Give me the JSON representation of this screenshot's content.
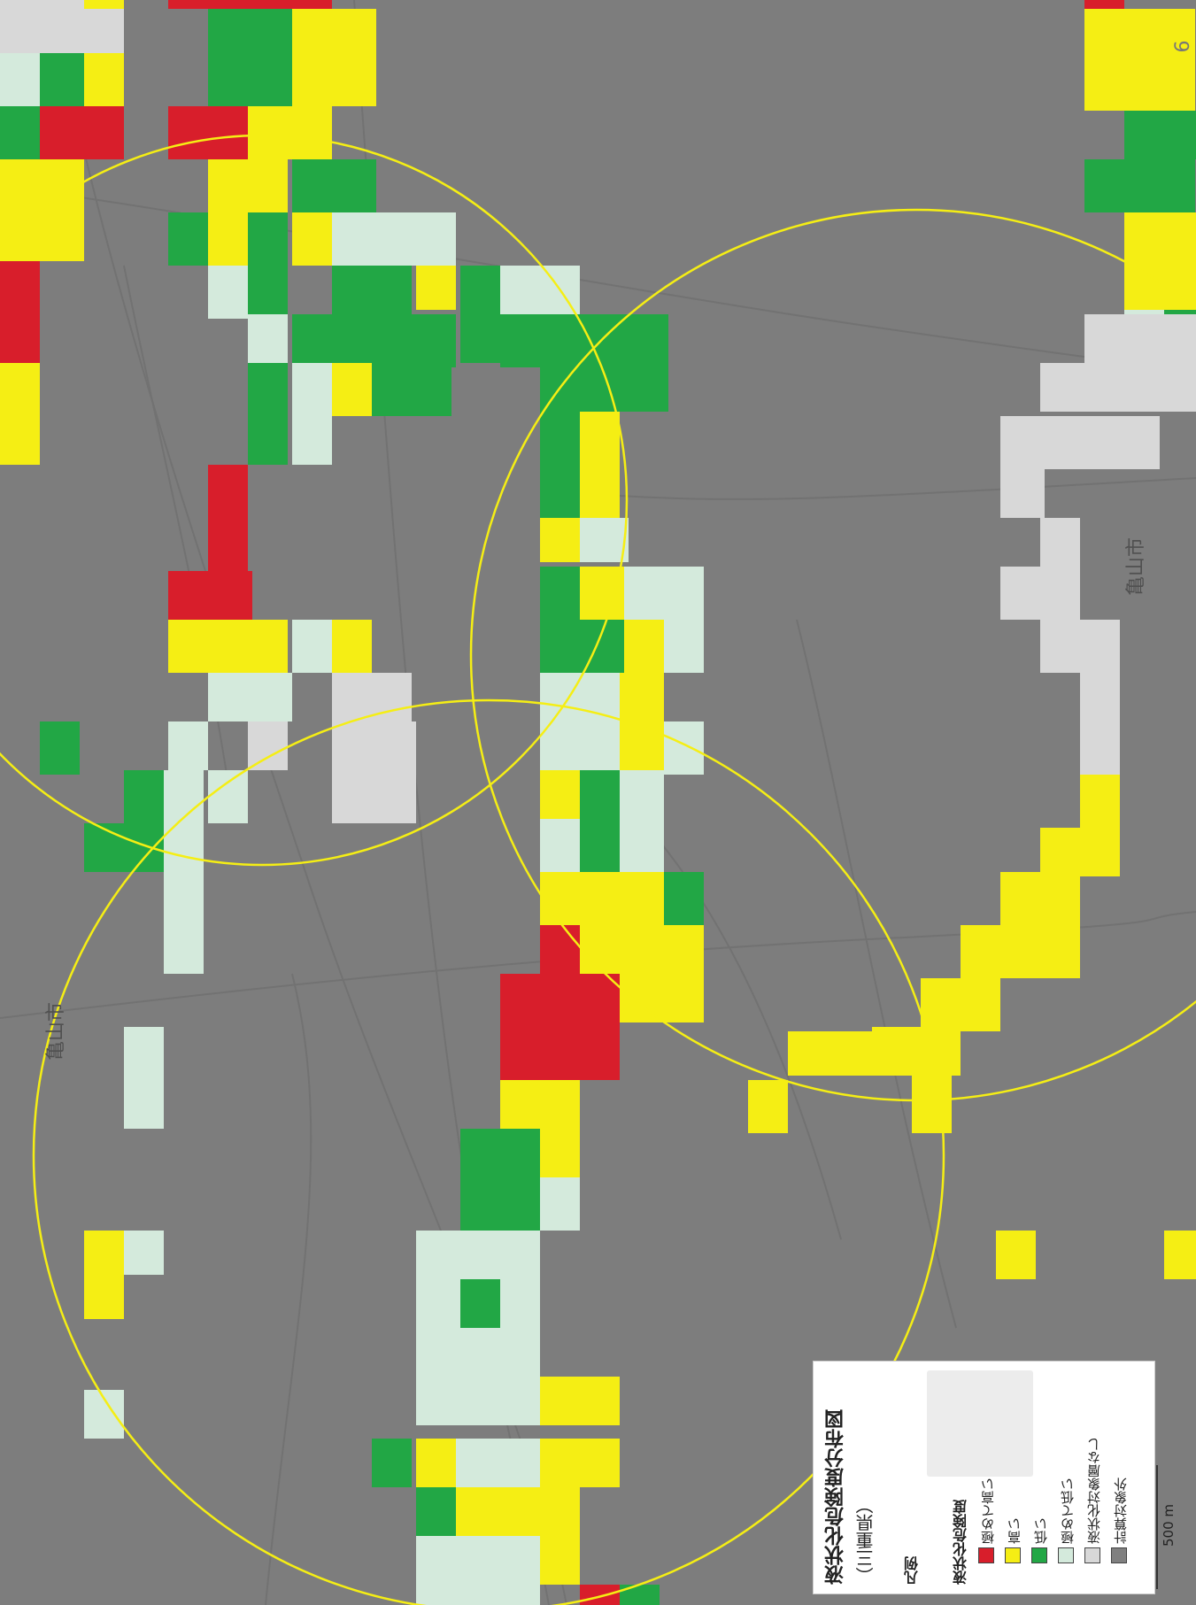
{
  "page_number": "9",
  "map_labels": {
    "city_east": "亀山市",
    "city_west": "亀山市"
  },
  "legend": {
    "title": "液状化危険度分布図",
    "region": "（三重県）",
    "key_label": "凡例",
    "caption": "液状化危険度",
    "items": [
      {
        "label": "極めて高い",
        "color": "#d81e2b"
      },
      {
        "label": "高い",
        "color": "#f5ee14"
      },
      {
        "label": "低い",
        "color": "#22a745"
      },
      {
        "label": "極めて低い",
        "color": "#d4eadc"
      },
      {
        "label": "液状化対象層なし",
        "color": "#d8d8d8"
      },
      {
        "label": "計算対象外",
        "color": "#808080"
      }
    ]
  },
  "scale": {
    "label": "500 m"
  },
  "colors": {
    "background": "#7d7d7d",
    "circle": "#f5ee14"
  }
}
